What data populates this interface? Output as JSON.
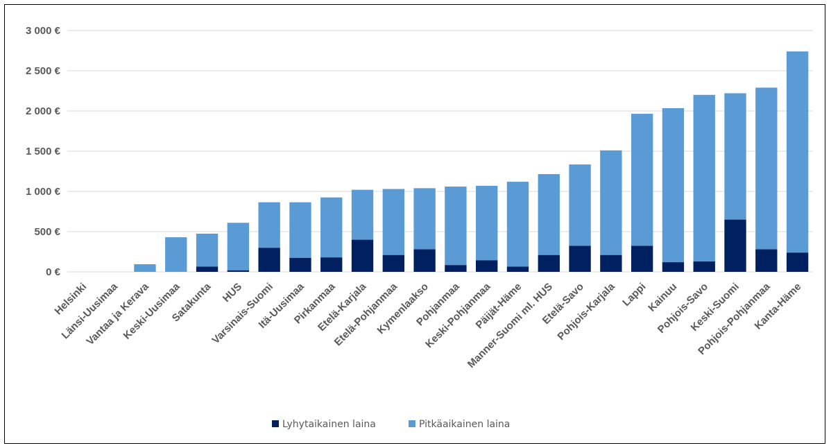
{
  "chart_data": {
    "type": "bar",
    "stacked": true,
    "title": "",
    "xlabel": "",
    "ylabel": "",
    "ylim": [
      0,
      3000
    ],
    "yticks": [
      0,
      500,
      1000,
      1500,
      2000,
      2500,
      3000
    ],
    "ytick_labels": [
      "0 €",
      "500 €",
      "1 000 €",
      "1 500 €",
      "2 000 €",
      "2 500 €",
      "3 000 €"
    ],
    "grid": true,
    "legend_position": "bottom",
    "categories": [
      "Helsinki",
      "Länsi-Uusimaa",
      "Vantaa ja Kerava",
      "Keski-Uusimaa",
      "Satakunta",
      "HUS",
      "Varsinais-Suomi",
      "Itä-Uusimaa",
      "Pirkanmaa",
      "Etelä-Karjala",
      "Etelä-Pohjanmaa",
      "Kymenlaakso",
      "Pohjanmaa",
      "Keski-Pohjanmaa",
      "Päijät-Häme",
      "Manner-Suomi ml. HUS",
      "Etelä-Savo",
      "Pohjois-Karjala",
      "Lappi",
      "Kainuu",
      "Pohjois-Savo",
      "Keski-Suomi",
      "Pohjois-Pohjanmaa",
      "Kanta-Häme"
    ],
    "series": [
      {
        "name": "Lyhytaikainen laina",
        "color": "#002060",
        "values": [
          0,
          0,
          0,
          0,
          65,
          20,
          300,
          175,
          180,
          400,
          210,
          280,
          85,
          145,
          65,
          210,
          325,
          210,
          325,
          120,
          130,
          650,
          280,
          240
        ]
      },
      {
        "name": "Pitkäaikainen laina",
        "color": "#5b9bd5",
        "values": [
          0,
          0,
          95,
          430,
          410,
          590,
          565,
          690,
          745,
          620,
          820,
          760,
          975,
          925,
          1055,
          1005,
          1010,
          1300,
          1640,
          1915,
          2070,
          1570,
          2010,
          2500
        ]
      }
    ]
  }
}
